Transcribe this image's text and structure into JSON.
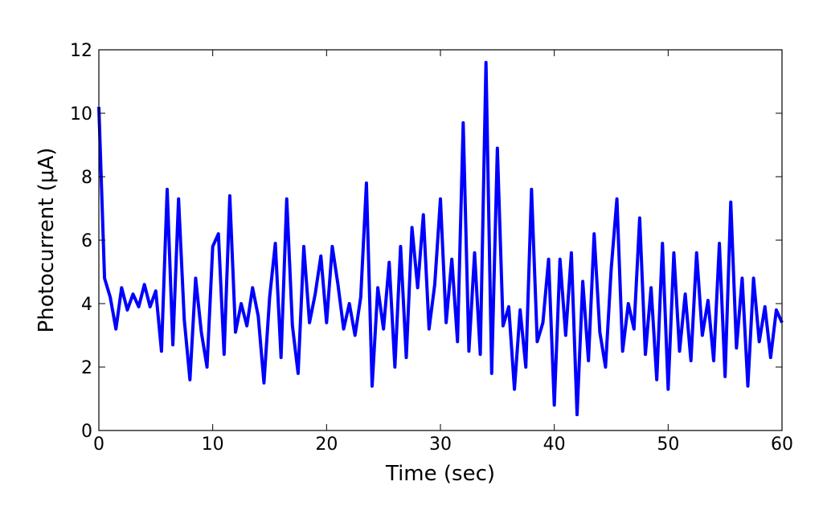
{
  "chart_data": {
    "type": "line",
    "xlabel": "Time (sec)",
    "ylabel": "Photocurrent (μA)",
    "color": "#0000ff",
    "x": [
      0,
      0.5,
      1,
      1.5,
      2,
      2.5,
      3,
      3.5,
      4,
      4.5,
      5,
      5.5,
      6,
      6.5,
      7,
      7.5,
      8,
      8.5,
      9,
      9.5,
      10,
      10.5,
      11,
      11.5,
      12,
      12.5,
      13,
      13.5,
      14,
      14.5,
      15,
      15.5,
      16,
      16.5,
      17,
      17.5,
      18,
      18.5,
      19,
      19.5,
      20,
      20.5,
      21,
      21.5,
      22,
      22.5,
      23,
      23.5,
      24,
      24.5,
      25,
      25.5,
      26,
      26.5,
      27,
      27.5,
      28,
      28.5,
      29,
      29.5,
      30,
      30.5,
      31,
      31.5,
      32,
      32.5,
      33,
      33.5,
      34,
      34.5,
      35,
      35.5,
      36,
      36.5,
      37,
      37.5,
      38,
      38.5,
      39,
      39.5,
      40,
      40.5,
      41,
      41.5,
      42,
      42.5,
      43,
      43.5,
      44,
      44.5,
      45,
      45.5,
      46,
      46.5,
      47,
      47.5,
      48,
      48.5,
      49,
      49.5,
      50,
      50.5,
      51,
      51.5,
      52,
      52.5,
      53,
      53.5,
      54,
      54.5,
      55,
      55.5,
      56,
      56.5,
      57,
      57.5,
      58,
      58.5,
      59,
      59.5,
      60
    ],
    "values": [
      10.2,
      4.8,
      4.2,
      3.2,
      4.5,
      3.8,
      4.3,
      3.9,
      4.6,
      3.9,
      4.4,
      2.5,
      7.6,
      2.7,
      7.3,
      3.5,
      1.6,
      4.8,
      3.1,
      2.0,
      5.8,
      6.2,
      2.4,
      7.4,
      3.1,
      4.0,
      3.3,
      4.5,
      3.6,
      1.5,
      4.2,
      5.9,
      2.3,
      7.3,
      3.3,
      1.8,
      5.8,
      3.4,
      4.3,
      5.5,
      3.4,
      5.8,
      4.6,
      3.2,
      4.0,
      3.0,
      4.2,
      7.8,
      1.4,
      4.5,
      3.2,
      5.3,
      2.0,
      5.8,
      2.3,
      6.4,
      4.5,
      6.8,
      3.2,
      4.6,
      7.3,
      3.4,
      5.4,
      2.8,
      9.7,
      2.5,
      5.6,
      2.4,
      11.6,
      1.8,
      8.9,
      3.3,
      3.9,
      1.3,
      3.8,
      2.0,
      7.6,
      2.8,
      3.4,
      5.4,
      0.8,
      5.4,
      3.0,
      5.6,
      0.5,
      4.7,
      2.2,
      6.2,
      3.1,
      2.0,
      5.1,
      7.3,
      2.5,
      4.0,
      3.2,
      6.7,
      2.4,
      4.5,
      1.6,
      5.9,
      1.3,
      5.6,
      2.5,
      4.3,
      2.2,
      5.6,
      3.0,
      4.1,
      2.2,
      5.9,
      1.7,
      7.2,
      2.6,
      4.8,
      1.4,
      4.8,
      2.8,
      3.9,
      2.3,
      3.8,
      3.4
    ],
    "xlim": [
      0,
      60
    ],
    "xticks": [
      0,
      10,
      20,
      30,
      40,
      50,
      60
    ],
    "ylim": [
      0,
      12
    ],
    "yticks": [
      0,
      2,
      4,
      6,
      8,
      10,
      12
    ]
  }
}
